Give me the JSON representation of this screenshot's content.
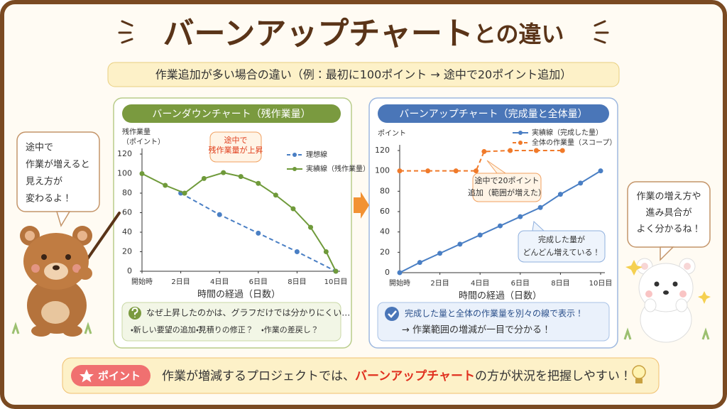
{
  "header": {
    "title_main": "バーンアップチャート",
    "title_suffix": "との違い",
    "subtitle": "作業追加が多い場合の違い（例：最初に100ポイント → 途中で20ポイント追加）"
  },
  "chart_data": [
    {
      "type": "line",
      "title": "バーンダウンチャート（残作業量）",
      "ylabel": [
        "残作業量",
        "（ポイント）"
      ],
      "xlabel": "時間の経過（日数）",
      "xlim": [
        0,
        10
      ],
      "ylim": [
        0,
        120
      ],
      "xticks": [
        {
          "value": 0,
          "label": "開始時"
        },
        {
          "value": 2,
          "label": "2日目"
        },
        {
          "value": 4,
          "label": "4日目"
        },
        {
          "value": 6,
          "label": "6日目"
        },
        {
          "value": 8,
          "label": "8日目"
        },
        {
          "value": 10,
          "label": "10日目"
        }
      ],
      "yticks": [
        0,
        20,
        40,
        60,
        80,
        100,
        120
      ],
      "legend": "upper right",
      "series": [
        {
          "name": "理想線",
          "color": "#4a7fc4",
          "dashed": true,
          "x": [
            2,
            4,
            6,
            8,
            10
          ],
          "values": [
            80,
            58,
            39,
            20,
            0
          ]
        },
        {
          "name": "実績線（残作業量）",
          "color": "#6f9a3a",
          "dashed": false,
          "x": [
            0,
            1.2,
            2.2,
            3.2,
            4.2,
            5.1,
            6,
            6.9,
            7.8,
            8.7,
            9.5,
            10
          ],
          "values": [
            100,
            88,
            80,
            95,
            101,
            97,
            90,
            78,
            64,
            45,
            20,
            0
          ]
        }
      ],
      "annotations": [
        {
          "lines": [
            "途中で",
            "残作業量が上昇"
          ],
          "color": "#e0401f"
        }
      ]
    },
    {
      "type": "line",
      "title": "バーンアップチャート（完成量と全体量）",
      "ylabel": [
        "ポイント"
      ],
      "xlabel": "時間の経過（日数）",
      "xlim": [
        0,
        10
      ],
      "ylim": [
        0,
        120
      ],
      "xticks": [
        {
          "value": 0,
          "label": "開始時"
        },
        {
          "value": 2,
          "label": "2日目"
        },
        {
          "value": 4,
          "label": "4日目"
        },
        {
          "value": 6,
          "label": "6日目"
        },
        {
          "value": 8,
          "label": "8日目"
        },
        {
          "value": 10,
          "label": "10日目"
        }
      ],
      "yticks": [
        0,
        20,
        40,
        60,
        80,
        100,
        120
      ],
      "legend": "upper right",
      "series": [
        {
          "name": "実績線（完成した量）",
          "color": "#4a7fc4",
          "dashed": false,
          "x": [
            0,
            1,
            2,
            3,
            4,
            5,
            6,
            7,
            8,
            9,
            10
          ],
          "values": [
            0,
            10,
            19,
            28,
            37,
            46,
            55,
            64,
            77,
            88,
            100
          ]
        },
        {
          "name": "全体の作業量（スコープ）",
          "color": "#f07a2a",
          "dashed": true,
          "x": [
            0,
            1.4,
            2.8,
            3.8,
            4.2,
            5.5,
            6.8,
            8.1
          ],
          "values": [
            100,
            100,
            100,
            100,
            119,
            120,
            120,
            120
          ]
        }
      ],
      "annotations": [
        {
          "lines": [
            "途中で20ポイント",
            "追加（範囲が増えた）"
          ],
          "color": "#333333"
        },
        {
          "lines": [
            "完成した量が",
            "どんどん増えている！"
          ],
          "color": "#333333"
        }
      ]
    }
  ],
  "notes": [
    {
      "lead": "なぜ上昇したのかは、グラフだけでは分かりにくい…",
      "items": [
        "・新しい要望の追加？",
        "・見積りの修正？",
        "・作業の差戻し？"
      ]
    },
    {
      "lead": "完成した量と全体の作業量を別々の線で表示！",
      "items": [
        "→ 作業範囲の増減が一目で分かる！"
      ]
    }
  ],
  "bubbles": {
    "left": [
      "途中で",
      "作業が増えると",
      "見え方が",
      "変わるよ！"
    ],
    "right": [
      "作業の増え方や",
      "進み具合が",
      "よく分かるね！"
    ]
  },
  "footer": {
    "badge": "ポイント",
    "before": "作業が増減するプロジェクトでは、",
    "highlight": "バーンアップチャート",
    "after": "の方が状況を把握しやすい！"
  }
}
